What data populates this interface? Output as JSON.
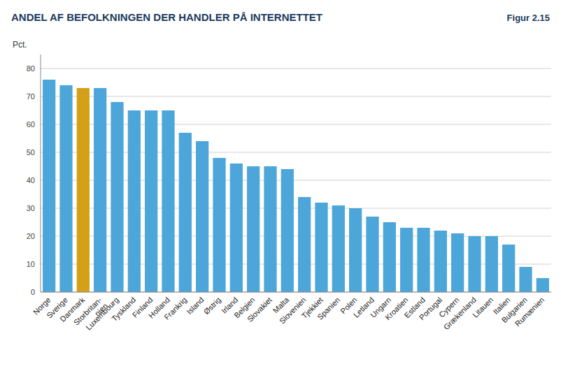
{
  "chart_data": {
    "type": "bar",
    "title": "ANDEL AF BEFOLKNINGEN DER HANDLER PÅ INTERNETTET",
    "annotations": [
      "Figur 2.15"
    ],
    "ylabel": "Pct.",
    "categories": [
      "Norge",
      "Sverige",
      "Danmark",
      "Storbritan-\nnien",
      "Luxembourg",
      "Tyskland",
      "Finland",
      "Holland",
      "Frankrig",
      "Island",
      "Østrig",
      "Irland",
      "Belgien",
      "Slovakiet",
      "Malta",
      "Slovenien",
      "Tjekkiet",
      "Spanien",
      "Polen",
      "Letland",
      "Ungarn",
      "Kroatien",
      "Estland",
      "Portugal",
      "Cypern",
      "Grækenland",
      "Litauen",
      "Italien",
      "Bulgarien",
      "Rumænien"
    ],
    "values": [
      76,
      74,
      73,
      73,
      68,
      65,
      65,
      65,
      57,
      54,
      48,
      46,
      45,
      45,
      44,
      34,
      32,
      31,
      30,
      27,
      25,
      23,
      23,
      22,
      21,
      20,
      20,
      17,
      9,
      5
    ],
    "colors": [
      "#4da6d9",
      "#4da6d9",
      "#d4a017",
      "#4da6d9",
      "#4da6d9",
      "#4da6d9",
      "#4da6d9",
      "#4da6d9",
      "#4da6d9",
      "#4da6d9",
      "#4da6d9",
      "#4da6d9",
      "#4da6d9",
      "#4da6d9",
      "#4da6d9",
      "#4da6d9",
      "#4da6d9",
      "#4da6d9",
      "#4da6d9",
      "#4da6d9",
      "#4da6d9",
      "#4da6d9",
      "#4da6d9",
      "#4da6d9",
      "#4da6d9",
      "#4da6d9",
      "#4da6d9",
      "#4da6d9",
      "#4da6d9",
      "#4da6d9"
    ],
    "ylim": [
      0,
      85
    ],
    "yticks": [
      0,
      10,
      20,
      30,
      40,
      50,
      60,
      70,
      80
    ],
    "grid": true
  }
}
